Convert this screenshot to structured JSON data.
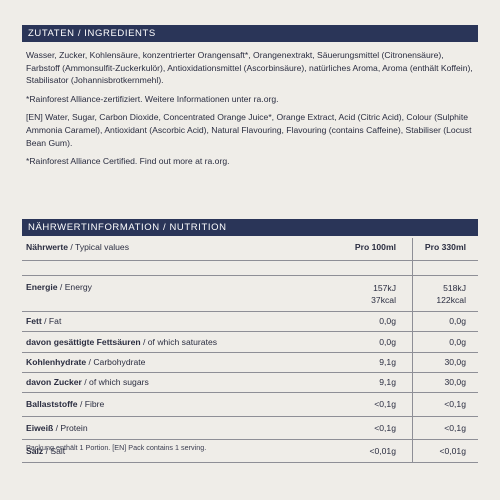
{
  "ingredients": {
    "header": "ZUTATEN / INGREDIENTS",
    "de": "Wasser, Zucker, Kohlensäure, konzentrierter Orangensaft*, Orangenextrakt, Säuerungsmittel (Citronensäure), Farbstoff (Ammonsulfit-Zuckerkulör), Antioxidationsmittel (Ascorbinsäure), natürliches Aroma, Aroma (enthält Koffein), Stabilisator (Johannisbrotkernmehl).",
    "de_note": "*Rainforest Alliance-zertifiziert. Weitere Informationen unter ra.org.",
    "en": "[EN] Water, Sugar, Carbon Dioxide, Concentrated Orange Juice*, Orange Extract, Acid (Citric Acid), Colour (Sulphite Ammonia Caramel), Antioxidant (Ascorbic Acid), Natural Flavouring, Flavouring (contains Caffeine), Stabiliser (Locust Bean Gum).",
    "en_note": "*Rainforest Alliance Certified. Find out more at ra.org."
  },
  "nutrition": {
    "header": "NÄHRWERTINFORMATION / NUTRITION",
    "head": {
      "de": "Nährwerte",
      "en": " / Typical values",
      "c1": "Pro 100ml",
      "c2": "Pro 330ml"
    },
    "rows": [
      {
        "de": "Energie",
        "en": " / Energy",
        "c1a": "157kJ",
        "c1b": "37kcal",
        "c2a": "518kJ",
        "c2b": "122kcal"
      },
      {
        "de": "Fett",
        "en": " / Fat",
        "c1": "0,0g",
        "c2": "0,0g"
      },
      {
        "de": "davon gesättigte Fettsäuren",
        "en": " / of which saturates",
        "c1": "0,0g",
        "c2": "0,0g"
      },
      {
        "de": "Kohlenhydrate",
        "en": " / Carbohydrate",
        "c1": "9,1g",
        "c2": "30,0g"
      },
      {
        "de": "davon Zucker",
        "en": " / of which sugars",
        "c1": "9,1g",
        "c2": "30,0g"
      },
      {
        "de": "Ballaststoffe",
        "en": " / Fibre",
        "c1": "<0,1g",
        "c2": "<0,1g"
      },
      {
        "de": "Eiweiß",
        "en": " / Protein",
        "c1": "<0,1g",
        "c2": "<0,1g"
      },
      {
        "de": "Salz",
        "en": " / Salt",
        "c1": "<0,01g",
        "c2": "<0,01g"
      }
    ],
    "footer": "Packung enthält 1 Portion. [EN] Pack contains 1 serving."
  }
}
